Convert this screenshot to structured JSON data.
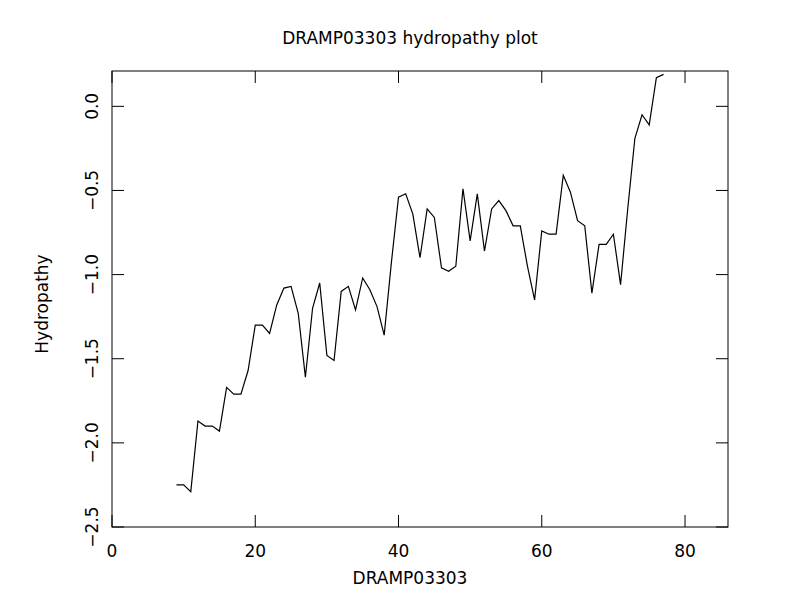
{
  "chart_data": {
    "type": "line",
    "title": "DRAMP03303 hydropathy plot",
    "x_label": "DRAMP03303",
    "y_label": "Hydropathy",
    "color": "#000000",
    "grid": false,
    "x": [
      9,
      10,
      11,
      12,
      13,
      14,
      15,
      16,
      17,
      18,
      19,
      20,
      21,
      22,
      23,
      24,
      25,
      26,
      27,
      28,
      29,
      30,
      31,
      32,
      33,
      34,
      35,
      36,
      37,
      38,
      39,
      40,
      41,
      42,
      43,
      44,
      45,
      46,
      47,
      48,
      49,
      50,
      51,
      52,
      53,
      54,
      55,
      56,
      57,
      58,
      59,
      60,
      61,
      62,
      63,
      64,
      65,
      66,
      67,
      68,
      69,
      70,
      71,
      72,
      73,
      74,
      75,
      76,
      77
    ],
    "values": [
      -2.25,
      -2.25,
      -2.29,
      -1.87,
      -1.9,
      -1.9,
      -1.93,
      -1.67,
      -1.71,
      -1.71,
      -1.57,
      -1.3,
      -1.3,
      -1.35,
      -1.18,
      -1.08,
      -1.07,
      -1.23,
      -1.61,
      -1.2,
      -1.05,
      -1.48,
      -1.51,
      -1.1,
      -1.07,
      -1.21,
      -1.02,
      -1.09,
      -1.19,
      -1.36,
      -0.93,
      -0.54,
      -0.52,
      -0.64,
      -0.9,
      -0.61,
      -0.66,
      -0.96,
      -0.98,
      -0.95,
      -0.49,
      -0.8,
      -0.52,
      -0.86,
      -0.61,
      -0.56,
      -0.62,
      -0.71,
      -0.71,
      -0.95,
      -1.15,
      -0.74,
      -0.76,
      -0.76,
      -0.41,
      -0.51,
      -0.68,
      -0.71,
      -1.11,
      -0.82,
      -0.82,
      -0.76,
      -1.06,
      -0.61,
      -0.19,
      -0.05,
      -0.11,
      0.17,
      0.19
    ],
    "xlim": [
      0,
      86
    ],
    "ylim": [
      -2.5,
      0.21
    ],
    "xticks": [
      0,
      20,
      40,
      60,
      80
    ],
    "yticks": [
      {
        "value": -2.5,
        "label": "−2.5"
      },
      {
        "value": -2.0,
        "label": "−2.0"
      },
      {
        "value": -1.5,
        "label": "−1.5"
      },
      {
        "value": -1.0,
        "label": "−1.0"
      },
      {
        "value": -0.5,
        "label": "−0.5"
      },
      {
        "value": 0,
        "label": "0.0"
      }
    ]
  }
}
